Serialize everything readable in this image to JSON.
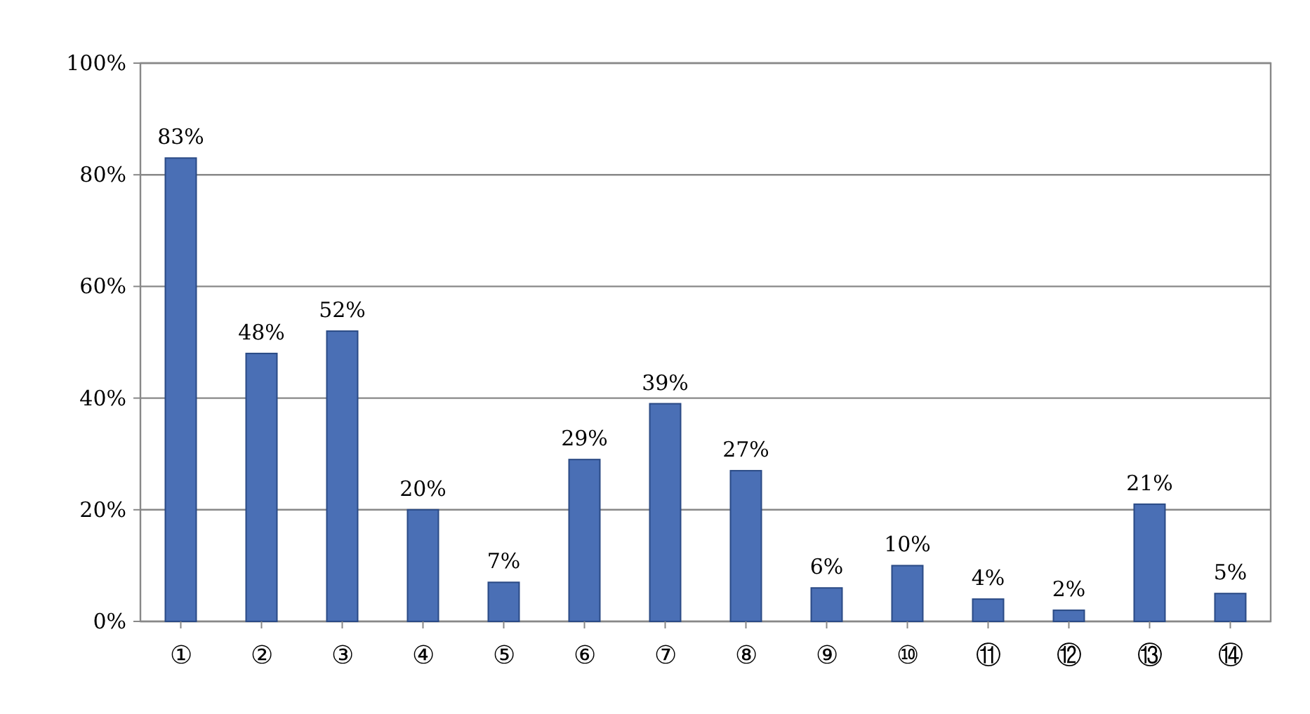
{
  "chart_data": {
    "type": "bar",
    "categories": [
      "①",
      "②",
      "③",
      "④",
      "⑤",
      "⑥",
      "⑦",
      "⑧",
      "⑨",
      "⑩",
      "⑪",
      "⑫",
      "⑬",
      "⑭"
    ],
    "values": [
      83,
      48,
      52,
      20,
      7,
      29,
      39,
      27,
      6,
      10,
      4,
      2,
      21,
      5
    ],
    "value_labels": [
      "83%",
      "48%",
      "52%",
      "20%",
      "7%",
      "29%",
      "39%",
      "27%",
      "6%",
      "10%",
      "4%",
      "2%",
      "21%",
      "5%"
    ],
    "color": "#4a6fb5",
    "ylim": [
      0,
      100
    ],
    "yticks": [
      {
        "value": 0,
        "label": "0%"
      },
      {
        "value": 20,
        "label": "20%"
      },
      {
        "value": 40,
        "label": "40%"
      },
      {
        "value": 60,
        "label": "60%"
      },
      {
        "value": 80,
        "label": "80%"
      },
      {
        "value": 100,
        "label": "100%"
      }
    ],
    "grid": "y"
  }
}
